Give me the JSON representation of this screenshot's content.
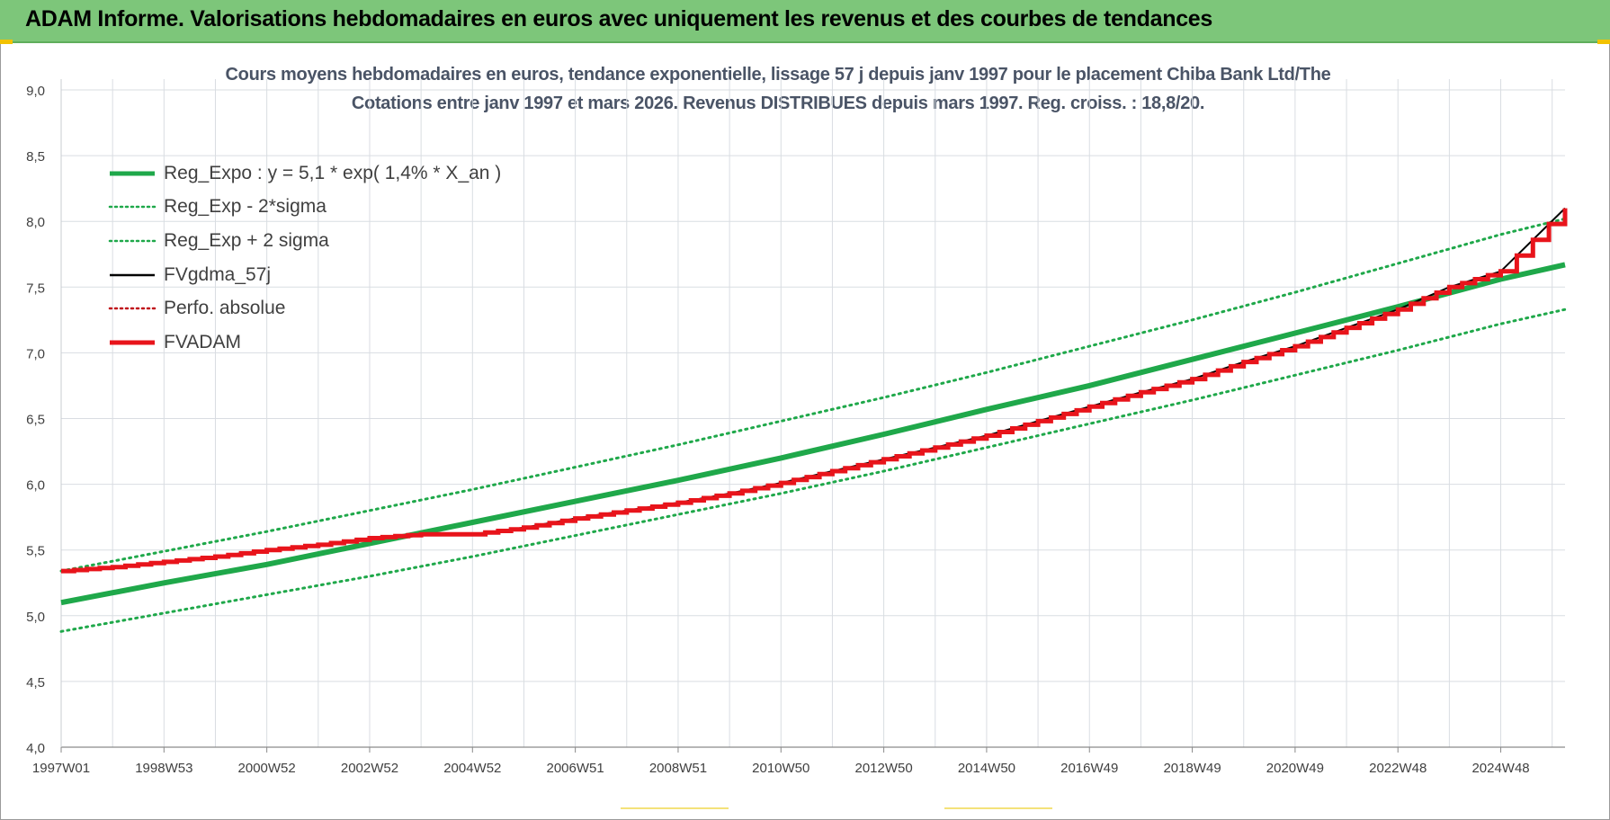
{
  "banner": {
    "title": "ADAM Informe. Valorisations hebdomadaires en euros avec uniquement les revenus et des courbes de tendances"
  },
  "colors": {
    "banner_bg": "#7dc67a",
    "reg_expo": "#1fa84a",
    "fvgdma": "#000000",
    "fvadam": "#e8141b",
    "perfo": "#c0141b",
    "grid": "#d9dde2"
  },
  "chart_data": {
    "type": "line",
    "title_line1": "Cours moyens hebdomadaires en euros, tendance exponentielle, lissage 57 j depuis janv 1997 pour le placement Chiba Bank Ltd/The",
    "title_line2": "Cotations entre janv 1997 et mars 2026. Revenus DISTRIBUES depuis mars 1997. Reg. croiss. : 18,8/20.",
    "xlabel": "",
    "ylabel": "",
    "ylim": [
      4.0,
      9.0
    ],
    "yticks": [
      "9,0",
      "8,5",
      "8,0",
      "7,5",
      "7,0",
      "6,5",
      "6,0",
      "5,5",
      "5,0",
      "4,5",
      "4,0"
    ],
    "xlim": [
      1997.0,
      2026.25
    ],
    "xticks": [
      {
        "label": "1997W01",
        "year": 1997.0
      },
      {
        "label": "1998W53",
        "year": 1999.0
      },
      {
        "label": "2000W52",
        "year": 2001.0
      },
      {
        "label": "2002W52",
        "year": 2003.0
      },
      {
        "label": "2004W52",
        "year": 2005.0
      },
      {
        "label": "2006W51",
        "year": 2007.0
      },
      {
        "label": "2008W51",
        "year": 2009.0
      },
      {
        "label": "2010W50",
        "year": 2011.0
      },
      {
        "label": "2012W50",
        "year": 2013.0
      },
      {
        "label": "2014W50",
        "year": 2015.0
      },
      {
        "label": "2016W49",
        "year": 2017.0
      },
      {
        "label": "2018W49",
        "year": 2019.0
      },
      {
        "label": "2020W49",
        "year": 2021.0
      },
      {
        "label": "2022W48",
        "year": 2023.0
      },
      {
        "label": "2024W48",
        "year": 2025.0
      }
    ],
    "grid": true,
    "legend_position": "top-left",
    "legend": [
      {
        "key": "reg_expo",
        "label": "Reg_Expo : y = 5,1 * exp( 1,4% *  X_an )",
        "style": "solid-thick",
        "color": "#1fa84a"
      },
      {
        "key": "reg_minus",
        "label": "Reg_Exp - 2*sigma",
        "style": "dotted",
        "color": "#1fa84a"
      },
      {
        "key": "reg_plus",
        "label": "Reg_Exp + 2 sigma",
        "style": "dotted",
        "color": "#1fa84a"
      },
      {
        "key": "fvgdma",
        "label": "FVgdma_57j",
        "style": "solid-thin",
        "color": "#000000"
      },
      {
        "key": "perfo",
        "label": "Perfo. absolue",
        "style": "dotted",
        "color": "#c0141b"
      },
      {
        "key": "fvadam",
        "label": "FVADAM",
        "style": "solid-thick",
        "color": "#e8141b"
      }
    ],
    "series": [
      {
        "key": "reg_expo",
        "x": [
          1997.0,
          1999.0,
          2001.0,
          2003.0,
          2005.0,
          2007.0,
          2009.0,
          2011.0,
          2013.0,
          2015.0,
          2017.0,
          2019.0,
          2021.0,
          2023.0,
          2025.0,
          2026.25
        ],
        "y": [
          5.1,
          5.25,
          5.39,
          5.55,
          5.71,
          5.87,
          6.03,
          6.2,
          6.38,
          6.57,
          6.75,
          6.95,
          7.15,
          7.35,
          7.56,
          7.67
        ]
      },
      {
        "key": "reg_minus",
        "x": [
          1997.0,
          1999.0,
          2001.0,
          2003.0,
          2005.0,
          2007.0,
          2009.0,
          2011.0,
          2013.0,
          2015.0,
          2017.0,
          2019.0,
          2021.0,
          2023.0,
          2025.0,
          2026.25
        ],
        "y": [
          4.88,
          5.02,
          5.16,
          5.3,
          5.45,
          5.61,
          5.77,
          5.93,
          6.1,
          6.28,
          6.46,
          6.64,
          6.83,
          7.02,
          7.22,
          7.33
        ]
      },
      {
        "key": "reg_plus",
        "x": [
          1997.0,
          1999.0,
          2001.0,
          2003.0,
          2005.0,
          2007.0,
          2009.0,
          2011.0,
          2013.0,
          2015.0,
          2017.0,
          2019.0,
          2021.0,
          2023.0,
          2025.0,
          2026.25
        ],
        "y": [
          5.34,
          5.49,
          5.64,
          5.8,
          5.96,
          6.13,
          6.3,
          6.48,
          6.66,
          6.85,
          7.05,
          7.25,
          7.46,
          7.68,
          7.9,
          8.02
        ]
      },
      {
        "key": "fvadam",
        "x": [
          1997.0,
          1998.0,
          1999.0,
          2000.0,
          2001.0,
          2002.0,
          2003.0,
          2004.0,
          2005.0,
          2006.0,
          2007.0,
          2008.0,
          2009.0,
          2010.0,
          2011.0,
          2012.0,
          2013.0,
          2014.0,
          2015.0,
          2016.0,
          2017.0,
          2018.0,
          2019.0,
          2020.0,
          2021.0,
          2022.0,
          2023.0,
          2024.0,
          2025.0,
          2026.25
        ],
        "y": [
          5.34,
          5.37,
          5.41,
          5.45,
          5.5,
          5.54,
          5.59,
          5.62,
          5.62,
          5.67,
          5.74,
          5.8,
          5.86,
          5.93,
          6.01,
          6.1,
          6.19,
          6.28,
          6.37,
          6.48,
          6.59,
          6.7,
          6.8,
          6.93,
          7.05,
          7.19,
          7.33,
          7.5,
          7.62,
          8.1
        ]
      }
    ]
  }
}
